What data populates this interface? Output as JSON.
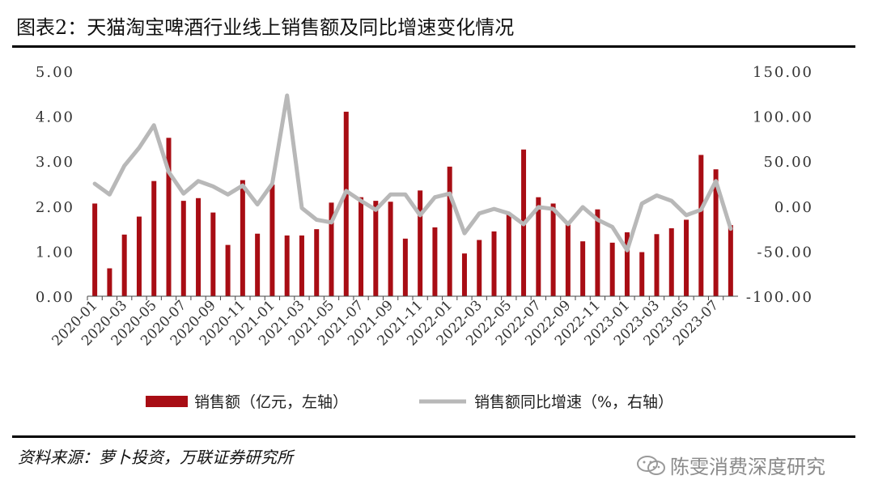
{
  "header": {
    "title": "图表2：天猫淘宝啤酒行业线上销售额及同比增速变化情况"
  },
  "footer": {
    "source": "资料来源：萝卜投资，万联证券研究所",
    "watermark": "陈雯消费深度研究"
  },
  "colors": {
    "bar": "#a80d14",
    "line": "#b8b8b8",
    "rule": "#000000"
  },
  "chart_data": {
    "type": "bar",
    "title": "",
    "xlabel": "",
    "ylabel": "",
    "x": [
      "2020-01",
      "2020-02",
      "2020-03",
      "2020-04",
      "2020-05",
      "2020-06",
      "2020-07",
      "2020-08",
      "2020-09",
      "2020-10",
      "2020-11",
      "2020-12",
      "2021-01",
      "2021-02",
      "2021-03",
      "2021-04",
      "2021-05",
      "2021-06",
      "2021-07",
      "2021-08",
      "2021-09",
      "2021-10",
      "2021-11",
      "2021-12",
      "2022-01",
      "2022-02",
      "2022-03",
      "2022-04",
      "2022-05",
      "2022-06",
      "2022-07",
      "2022-08",
      "2022-09",
      "2022-10",
      "2022-11",
      "2022-12",
      "2023-01",
      "2023-02",
      "2023-03",
      "2023-04",
      "2023-05",
      "2023-06",
      "2023-07",
      "2023-08"
    ],
    "x_tick_labels": [
      "2020-01",
      "2020-03",
      "2020-05",
      "2020-07",
      "2020-09",
      "2020-11",
      "2021-01",
      "2021-03",
      "2021-05",
      "2021-07",
      "2021-09",
      "2021-11",
      "2022-01",
      "2022-03",
      "2022-05",
      "2022-07",
      "2022-09",
      "2022-11",
      "2023-01",
      "2023-03",
      "2023-05",
      "2023-07"
    ],
    "left_ticks": [
      "5.00",
      "4.00",
      "3.00",
      "2.00",
      "1.00",
      "0.00"
    ],
    "right_ticks": [
      "150.00",
      "100.00",
      "50.00",
      "0.00",
      "-50.00",
      "-100.00"
    ],
    "ylim_left": [
      0,
      5
    ],
    "ylim_right": [
      -100,
      150
    ],
    "legend_position": "bottom",
    "series": [
      {
        "name": "销售额（亿元，左轴）",
        "type": "bar",
        "axis": "left",
        "values": [
          2.06,
          0.62,
          1.37,
          1.77,
          2.56,
          3.52,
          2.12,
          2.18,
          1.86,
          1.14,
          2.58,
          1.39,
          2.48,
          1.35,
          1.35,
          1.49,
          2.08,
          4.1,
          2.2,
          2.12,
          2.1,
          1.28,
          2.35,
          1.53,
          2.88,
          0.95,
          1.25,
          1.44,
          1.85,
          3.26,
          2.2,
          2.06,
          1.63,
          1.22,
          1.93,
          1.19,
          1.42,
          0.98,
          1.38,
          1.51,
          1.7,
          3.14,
          2.82,
          1.58
        ]
      },
      {
        "name": "销售额同比增速（%，右轴）",
        "type": "line",
        "axis": "right",
        "values": [
          25,
          13,
          45,
          65,
          90,
          38,
          14,
          28,
          22,
          13,
          23,
          2,
          25,
          123,
          -2,
          -15,
          -18,
          17,
          6,
          -4,
          13,
          13,
          -10,
          10,
          14,
          -30,
          -8,
          -3,
          -8,
          -20,
          -1,
          -3,
          -20,
          -1,
          -15,
          -23,
          -49,
          3,
          12,
          6,
          -10,
          -4,
          28,
          -25
        ]
      }
    ]
  }
}
